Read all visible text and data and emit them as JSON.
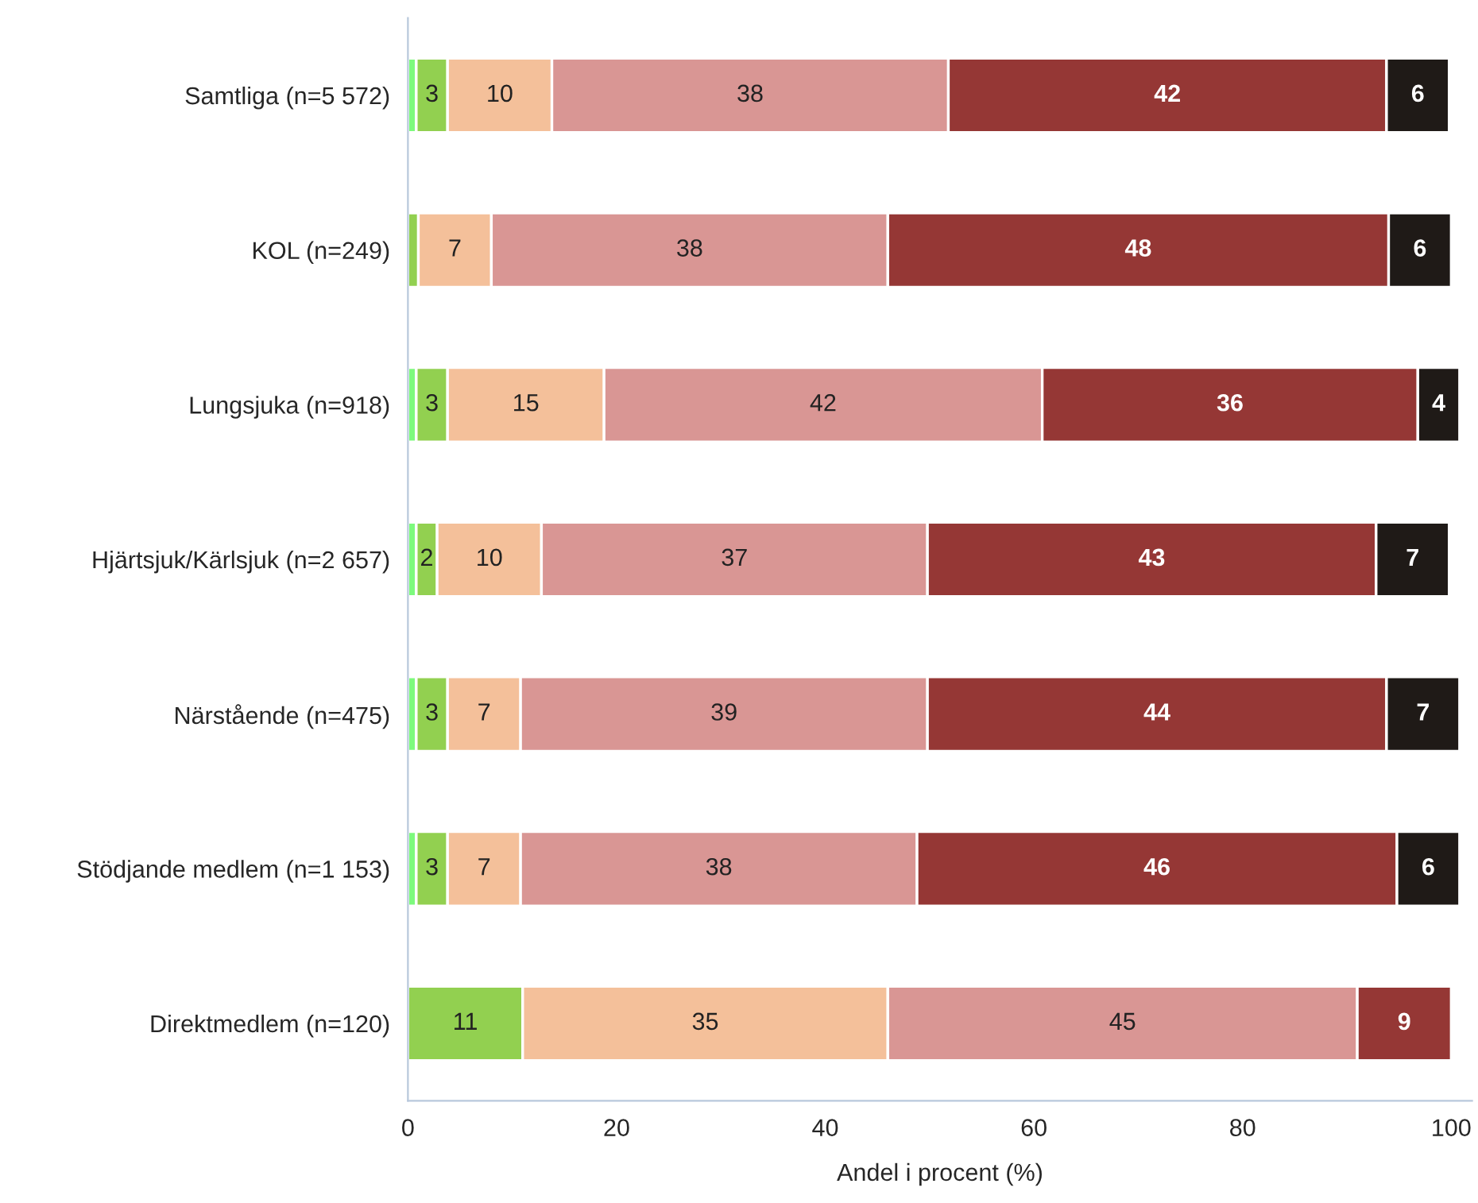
{
  "chart_data": {
    "type": "bar",
    "orientation": "horizontal",
    "stacked": true,
    "xlabel": "Andel i procent (%)",
    "categories": [
      "Samtliga (n=5 572)",
      "KOL (n=249)",
      "Lungsjuka (n=918)",
      "Hjärtsjuk/Kärlsjuk (n=2 657)",
      "Närstående (n=475)",
      "Stödjande medlem (n=1 153)",
      "Direktmedlem (n=120)"
    ],
    "xlim": [
      0,
      102
    ],
    "xticks": [
      0,
      20,
      40,
      60,
      80,
      100
    ],
    "grid": false,
    "legend": false,
    "series": [
      {
        "color": "#7dfa7d",
        "values": [
          0.8,
          null,
          0.8,
          0.8,
          0.8,
          0.8,
          null
        ],
        "value_labels": [
          null,
          null,
          null,
          null,
          null,
          null,
          null
        ]
      },
      {
        "color": "#92d050",
        "values": [
          3,
          1,
          3,
          2,
          3,
          3,
          11
        ],
        "value_labels": [
          "3",
          null,
          "3",
          "2",
          "3",
          "3",
          "11"
        ]
      },
      {
        "color": "#f4c09a",
        "values": [
          10,
          7,
          15,
          10,
          7,
          7,
          35
        ],
        "value_labels": [
          "10",
          "7",
          "15",
          "10",
          "7",
          "7",
          "35"
        ]
      },
      {
        "color": "#d99694",
        "values": [
          38,
          38,
          42,
          37,
          39,
          38,
          45
        ],
        "value_labels": [
          "38",
          "38",
          "42",
          "37",
          "39",
          "38",
          "45"
        ]
      },
      {
        "color": "#953735",
        "values": [
          42,
          48,
          36,
          43,
          44,
          46,
          9
        ],
        "value_labels": [
          "42",
          "48",
          "36",
          "43",
          "44",
          "46",
          "9"
        ]
      },
      {
        "color": "#1f1a17",
        "values": [
          6,
          6,
          4,
          7,
          7,
          6,
          null
        ],
        "value_labels": [
          "6",
          "6",
          "4",
          "7",
          "7",
          "6",
          null
        ]
      }
    ]
  }
}
